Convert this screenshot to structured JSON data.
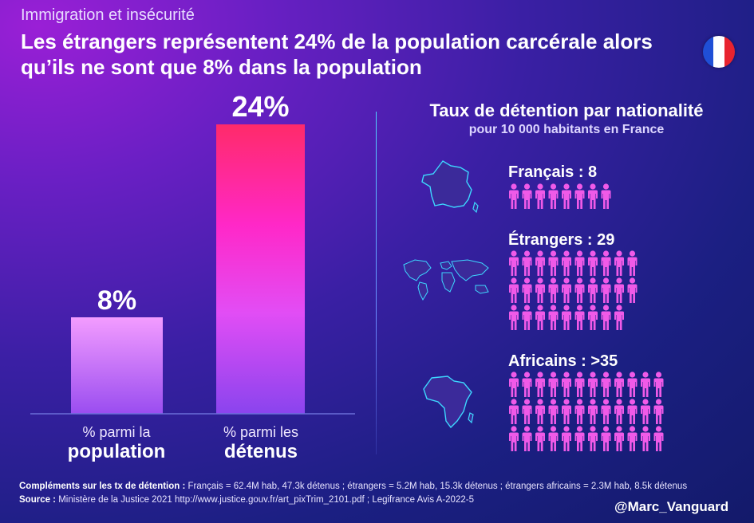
{
  "category": "Immigration et insécurité",
  "headline": "Les étrangers représentent 24% de la population carcérale alors qu’ils ne sont que 8% dans la population",
  "colors": {
    "bar_light": "#f08cff",
    "bar_bright": "#ff2a6a",
    "person": "#f05ae8",
    "flag_blue": "#1f4fd6",
    "flag_white": "#ffffff",
    "flag_red": "#e8232f"
  },
  "chart_data": {
    "type": "bar",
    "categories": [
      "% parmi la population",
      "% parmi les détenus"
    ],
    "values": [
      8,
      24
    ],
    "value_labels": [
      "8%",
      "24%"
    ],
    "category_labels": [
      {
        "line1": "% parmi la",
        "line2": "population"
      },
      {
        "line1": "% parmi les",
        "line2": "détenus"
      }
    ],
    "ylim": [
      0,
      24
    ]
  },
  "detention": {
    "title": "Taux de détention par nationalité",
    "subtitle": "pour 10 000 habitants en France",
    "groups": [
      {
        "label": "Français : 8",
        "count": 8,
        "map_icon": "france-map-icon"
      },
      {
        "label": "Étrangers : 29",
        "count": 29,
        "map_icon": "world-map-icon"
      },
      {
        "label": "Africains : >35",
        "count": 36,
        "map_icon": "africa-map-icon"
      }
    ]
  },
  "footer": {
    "complements_label": "Compléments sur les tx de détention :",
    "complements_text": "Français = 62.4M hab, 47.3k détenus ; étrangers = 5.2M hab, 15.3k détenus ; étrangers africains = 2.3M hab, 8.5k détenus",
    "source_label": "Source :",
    "source_text": "Ministère de la Justice 2021 http://www.justice.gouv.fr/art_pixTrim_2101.pdf ; Legifrance Avis A-2022-5"
  },
  "handle": "@Marc_Vanguard"
}
